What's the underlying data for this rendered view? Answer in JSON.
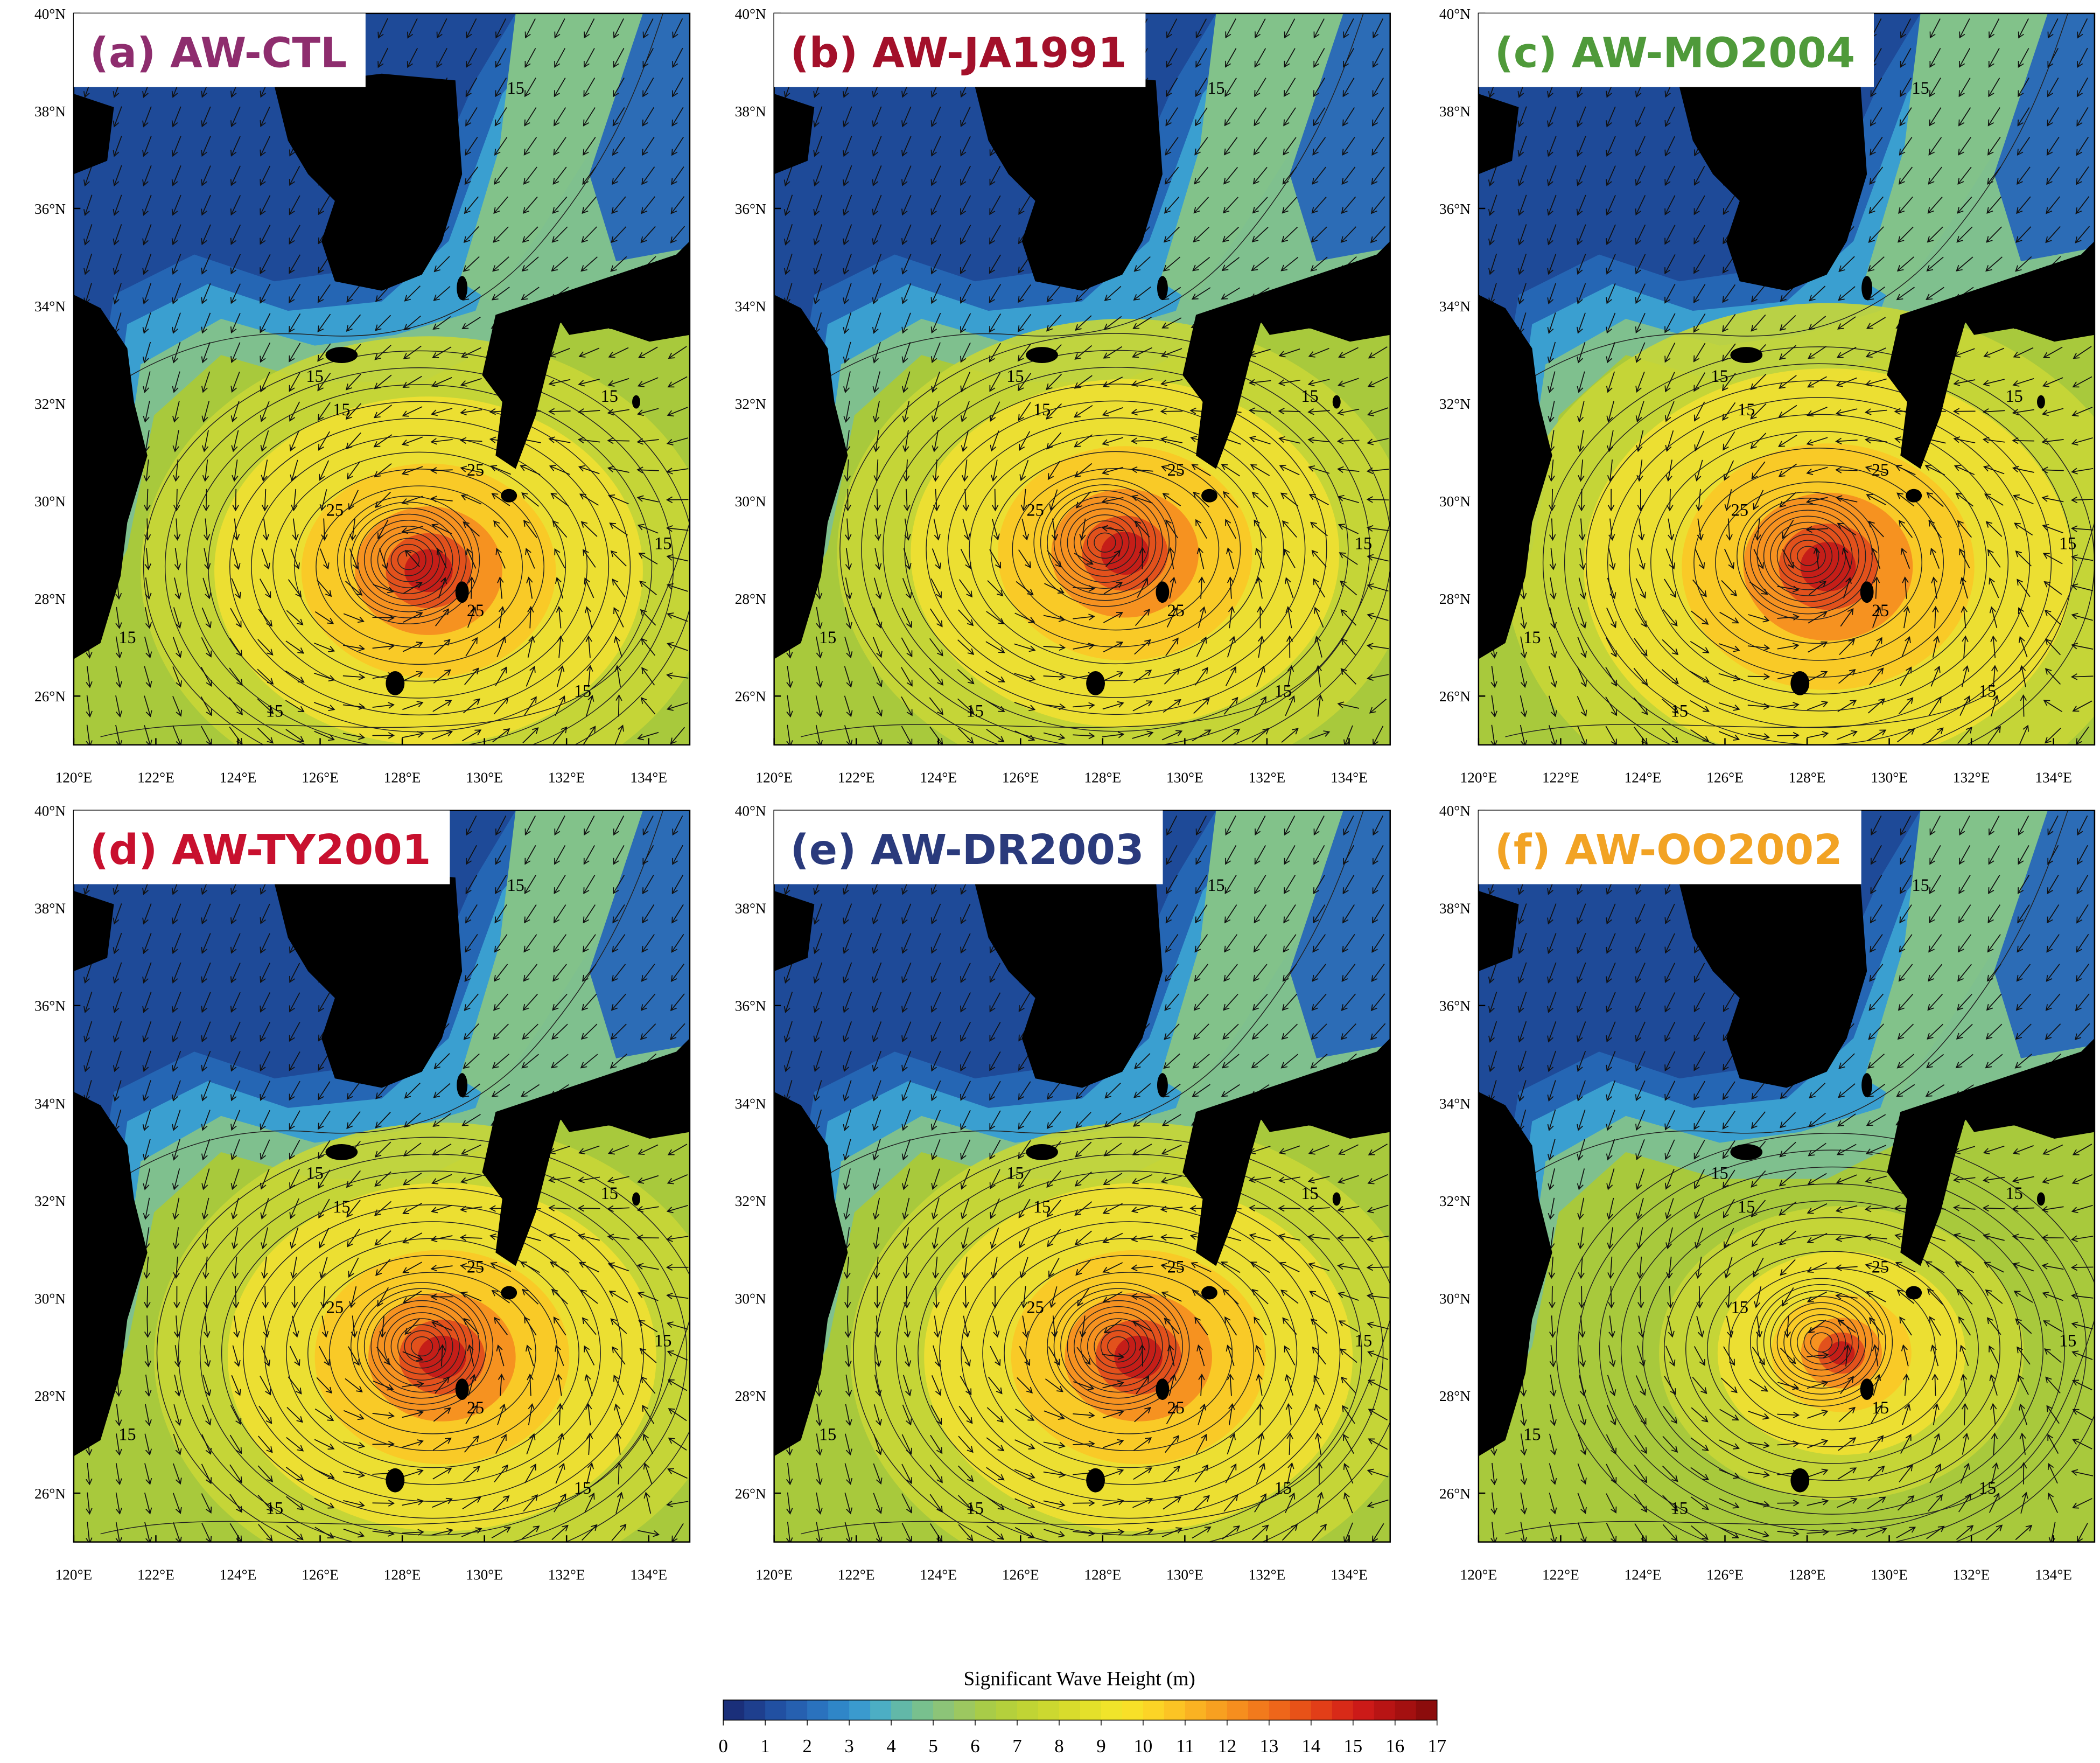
{
  "panels": [
    {
      "title": "(a) AW-CTL",
      "title_color": "#8e2d6e",
      "contour_labels": [
        "15",
        "15",
        "15",
        "25",
        "25",
        "25",
        "15",
        "15",
        "15",
        "15",
        "15"
      ]
    },
    {
      "title": "(b) AW-JA1991",
      "title_color": "#a3102a",
      "contour_labels": [
        "15",
        "15",
        "15",
        "25",
        "25",
        "25",
        "15",
        "15",
        "15",
        "15",
        "15"
      ]
    },
    {
      "title": "(c) AW-MO2004",
      "title_color": "#4f9a3a",
      "contour_labels": [
        "15",
        "15",
        "15",
        "25",
        "25",
        "25",
        "15",
        "15",
        "15",
        "15",
        "15"
      ]
    },
    {
      "title": "(d) AW-TY2001",
      "title_color": "#c8102e",
      "contour_labels": [
        "15",
        "15",
        "15",
        "25",
        "25",
        "25",
        "15",
        "15",
        "15",
        "15",
        "15"
      ]
    },
    {
      "title": "(e) AW-DR2003",
      "title_color": "#2a3a7c",
      "contour_labels": [
        "15",
        "15",
        "15",
        "25",
        "25",
        "25",
        "15",
        "15",
        "15",
        "15",
        "15"
      ]
    },
    {
      "title": "(f) AW-OO2002",
      "title_color": "#f2a324",
      "contour_labels": [
        "15",
        "15",
        "15",
        "25",
        "15",
        "15",
        "15",
        "15",
        "15",
        "15",
        "15"
      ]
    }
  ],
  "lat_ticks": [
    {
      "value": 26,
      "label": "26°N"
    },
    {
      "value": 28,
      "label": "28°N"
    },
    {
      "value": 30,
      "label": "30°N"
    },
    {
      "value": 32,
      "label": "32°N"
    },
    {
      "value": 34,
      "label": "34°N"
    },
    {
      "value": 36,
      "label": "36°N"
    },
    {
      "value": 38,
      "label": "38°N"
    },
    {
      "value": 40,
      "label": "40°N"
    }
  ],
  "lon_ticks": [
    {
      "value": 120,
      "label": "120°E"
    },
    {
      "value": 122,
      "label": "122°E"
    },
    {
      "value": 124,
      "label": "124°E"
    },
    {
      "value": 126,
      "label": "126°E"
    },
    {
      "value": 128,
      "label": "128°E"
    },
    {
      "value": 130,
      "label": "130°E"
    },
    {
      "value": 132,
      "label": "132°E"
    },
    {
      "value": 134,
      "label": "134°E"
    }
  ],
  "lat_range": [
    25,
    40
  ],
  "lon_range": [
    120,
    135
  ],
  "colorbar": {
    "title": "Significant Wave Height  (m)",
    "ticks": [
      0,
      1,
      2,
      3,
      4,
      5,
      6,
      7,
      8,
      9,
      10,
      11,
      12,
      13,
      14,
      15,
      16,
      17
    ],
    "colors": [
      "#1a2f7a",
      "#1e3f8e",
      "#2150a2",
      "#2660b0",
      "#2a72be",
      "#2f86c8",
      "#3a9ace",
      "#4caec4",
      "#62b8a8",
      "#78c08e",
      "#8cc478",
      "#9cc860",
      "#a8cc48",
      "#b4d03c",
      "#c0d434",
      "#ccd830",
      "#d8dc2c",
      "#e4e02a",
      "#f0e42a",
      "#f8e028",
      "#fcd426",
      "#fcc424",
      "#fab222",
      "#f8a020",
      "#f68e1e",
      "#f27a1c",
      "#ee661a",
      "#e85218",
      "#e23e18",
      "#d82a18",
      "#cc1a18",
      "#b81414",
      "#a41010",
      "#8c0c0c"
    ]
  }
}
